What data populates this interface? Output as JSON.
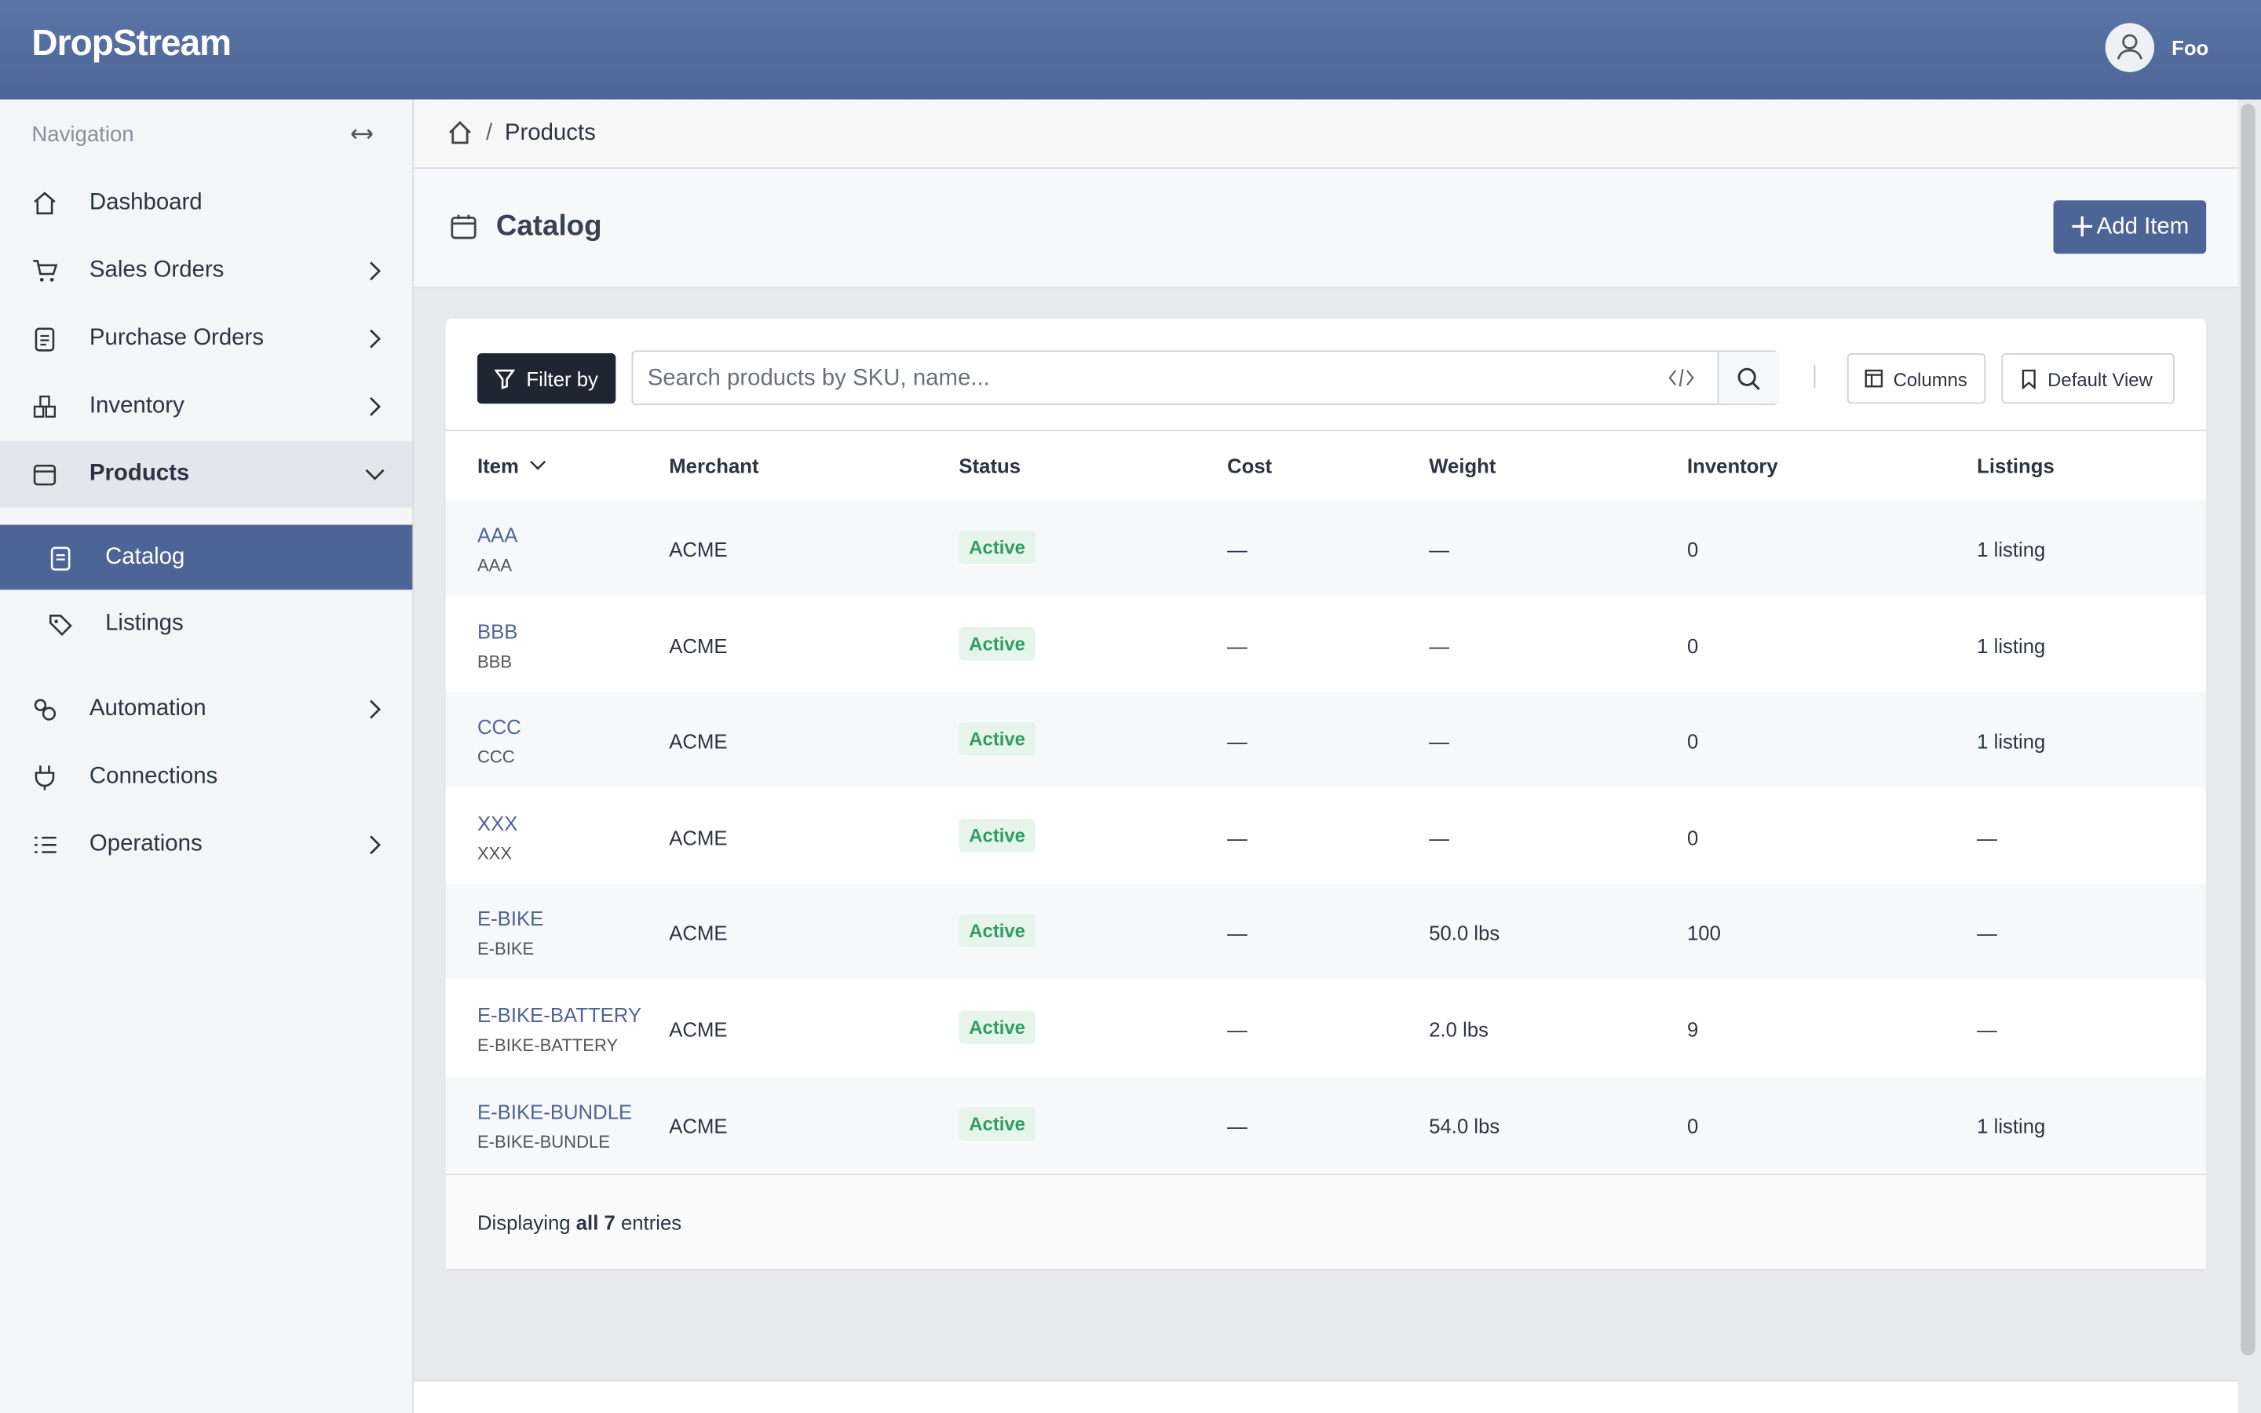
{
  "header": {
    "brand": "DropStream",
    "user": "Foo"
  },
  "sidebar": {
    "title": "Navigation",
    "items": [
      "Dashboard",
      "Sales Orders",
      "Purchase Orders",
      "Inventory",
      "Products",
      "Catalog",
      "Listings",
      "Automation",
      "Connections",
      "Operations"
    ]
  },
  "breadcrumb": {
    "current": "Products"
  },
  "page": {
    "title": "Catalog",
    "action": "Add Item"
  },
  "toolbar": {
    "filter": "Filter by",
    "search_placeholder": "Search products by SKU, name...",
    "columns": "Columns",
    "view": "Default View"
  },
  "table": {
    "headers": [
      "Item",
      "Merchant",
      "Status",
      "Cost",
      "Weight",
      "Inventory",
      "Listings"
    ],
    "rows": [
      [
        "AAA",
        "AAA",
        "ACME",
        "Active",
        "—",
        "—",
        "0",
        "1 listing"
      ],
      [
        "BBB",
        "BBB",
        "ACME",
        "Active",
        "—",
        "—",
        "0",
        "1 listing"
      ],
      [
        "CCC",
        "CCC",
        "ACME",
        "Active",
        "—",
        "—",
        "0",
        "1 listing"
      ],
      [
        "XXX",
        "XXX",
        "ACME",
        "Active",
        "—",
        "—",
        "0",
        "—"
      ],
      [
        "E-BIKE",
        "E-BIKE",
        "ACME",
        "Active",
        "—",
        "50.0 lbs",
        "100",
        "—"
      ],
      [
        "E-BIKE-BATTERY",
        "E-BIKE-BATTERY",
        "ACME",
        "Active",
        "—",
        "2.0 lbs",
        "9",
        "—"
      ],
      [
        "E-BIKE-BUNDLE",
        "E-BIKE-BUNDLE",
        "ACME",
        "Active",
        "—",
        "54.0 lbs",
        "0",
        "1 listing"
      ]
    ]
  },
  "footer": {
    "prefix": "Displaying",
    "count": "all 7",
    "suffix": "entries"
  }
}
